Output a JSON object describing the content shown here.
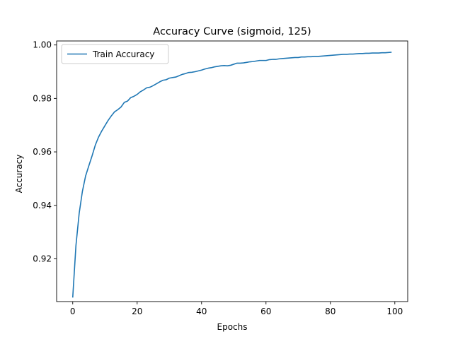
{
  "chart_data": {
    "type": "line",
    "title": "Accuracy Curve (sigmoid, 125)",
    "xlabel": "Epochs",
    "ylabel": "Accuracy",
    "xlim": [
      -5,
      104
    ],
    "ylim": [
      0.904,
      1.0015
    ],
    "xticks": [
      0,
      20,
      40,
      60,
      80,
      100
    ],
    "yticks": [
      0.92,
      0.94,
      0.96,
      0.98,
      1.0
    ],
    "ytick_labels": [
      "0.92",
      "0.94",
      "0.96",
      "0.98",
      "1.00"
    ],
    "grid": false,
    "legend_position": "upper-left",
    "series": [
      {
        "name": "Train Accuracy",
        "color": "#1f77b4",
        "x": [
          0,
          1,
          2,
          3,
          4,
          5,
          6,
          7,
          8,
          9,
          10,
          11,
          12,
          13,
          14,
          15,
          16,
          17,
          18,
          19,
          20,
          21,
          22,
          23,
          24,
          25,
          26,
          27,
          28,
          29,
          30,
          31,
          32,
          33,
          34,
          35,
          36,
          37,
          38,
          39,
          40,
          41,
          42,
          43,
          44,
          45,
          46,
          47,
          48,
          49,
          50,
          51,
          52,
          53,
          54,
          55,
          56,
          57,
          58,
          59,
          60,
          61,
          62,
          63,
          64,
          65,
          66,
          67,
          68,
          69,
          70,
          71,
          72,
          73,
          74,
          75,
          76,
          77,
          78,
          79,
          80,
          81,
          82,
          83,
          84,
          85,
          86,
          87,
          88,
          89,
          90,
          91,
          92,
          93,
          94,
          95,
          96,
          97,
          98,
          99
        ],
        "y": [
          0.9055,
          0.925,
          0.937,
          0.9452,
          0.951,
          0.9548,
          0.9585,
          0.9625,
          0.9655,
          0.9678,
          0.9698,
          0.9718,
          0.9735,
          0.975,
          0.9758,
          0.9768,
          0.9785,
          0.979,
          0.9803,
          0.9808,
          0.9815,
          0.9825,
          0.9832,
          0.984,
          0.9842,
          0.9848,
          0.9855,
          0.9862,
          0.9868,
          0.987,
          0.9876,
          0.9878,
          0.988,
          0.9885,
          0.989,
          0.9893,
          0.9897,
          0.9898,
          0.99,
          0.9903,
          0.9906,
          0.991,
          0.9913,
          0.9915,
          0.9918,
          0.992,
          0.9922,
          0.9923,
          0.9922,
          0.9924,
          0.9928,
          0.9932,
          0.9932,
          0.9933,
          0.9935,
          0.9937,
          0.9938,
          0.994,
          0.9942,
          0.9942,
          0.9942,
          0.9945,
          0.9946,
          0.9946,
          0.9948,
          0.9949,
          0.995,
          0.9951,
          0.9952,
          0.9953,
          0.9953,
          0.9955,
          0.9955,
          0.9956,
          0.9956,
          0.9957,
          0.9957,
          0.9958,
          0.9959,
          0.996,
          0.9961,
          0.9962,
          0.9963,
          0.9964,
          0.9965,
          0.9965,
          0.9966,
          0.9966,
          0.9967,
          0.9968,
          0.9968,
          0.9969,
          0.9969,
          0.997,
          0.997,
          0.997,
          0.9971,
          0.9971,
          0.9972,
          0.9973
        ]
      }
    ]
  }
}
